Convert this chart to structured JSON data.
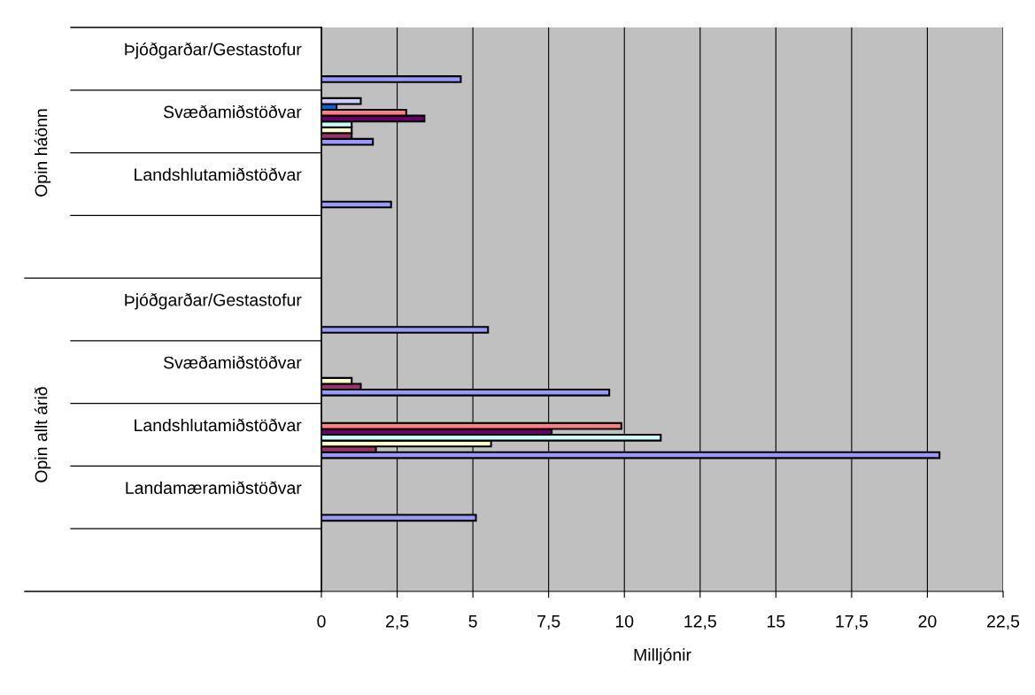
{
  "chart_data": {
    "type": "bar",
    "orientation": "horizontal",
    "xlabel": "Milljónir",
    "categories": [
      "Þjóðgarðar/Gestastofur",
      "Svæðamiðstöðvar",
      "Landshlutamiðstöðvar",
      null,
      "Þjóðgarðar/Gestastofur",
      "Svæðamiðstöðvar",
      "Landshlutamiðstöðvar",
      "Landamæramiðstöðvar",
      null
    ],
    "annotations": [
      "Opin háönn",
      "Opin allt árið"
    ],
    "series": [
      {
        "color": "#9999ff",
        "values": [
          4.6,
          1.7,
          2.3,
          null,
          5.5,
          9.5,
          20.4,
          5.1,
          null
        ]
      },
      {
        "color": "#993366",
        "values": [
          null,
          1.0,
          null,
          null,
          null,
          1.3,
          1.8,
          null,
          null
        ]
      },
      {
        "color": "#ffffcc",
        "values": [
          null,
          1.0,
          null,
          null,
          null,
          1.0,
          5.6,
          null,
          null
        ]
      },
      {
        "color": "#ccffff",
        "values": [
          null,
          1.0,
          null,
          null,
          null,
          null,
          11.2,
          null,
          null
        ]
      },
      {
        "color": "#660066",
        "values": [
          null,
          3.4,
          null,
          null,
          null,
          null,
          7.6,
          null,
          null
        ]
      },
      {
        "color": "#ff8080",
        "values": [
          null,
          2.8,
          null,
          null,
          null,
          null,
          9.9,
          null,
          null
        ]
      },
      {
        "color": "#0066cc",
        "values": [
          null,
          0.5,
          null,
          null,
          null,
          null,
          null,
          null,
          null
        ]
      },
      {
        "color": "#ccccff",
        "values": [
          null,
          1.3,
          null,
          null,
          null,
          null,
          null,
          null,
          null
        ]
      }
    ],
    "xlim": [
      0,
      22.5
    ],
    "xticks": [
      0,
      {
        "value": 2.5,
        "label": "2,5"
      },
      5,
      {
        "value": 7.5,
        "label": "7,5"
      },
      10,
      {
        "value": 12.5,
        "label": "12,5"
      },
      15,
      {
        "value": 17.5,
        "label": "17,5"
      },
      20,
      {
        "value": 22.5,
        "label": "22,5"
      }
    ],
    "grid": "x",
    "legend": false
  }
}
